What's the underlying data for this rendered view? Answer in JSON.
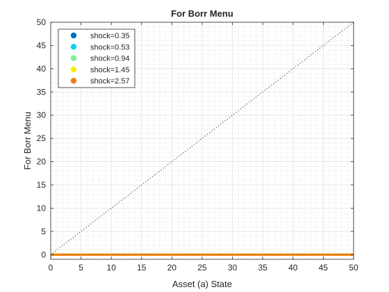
{
  "chart_data": {
    "type": "line",
    "title": "For Borr Menu",
    "xlabel": "Asset (a) State",
    "ylabel": "For Borr Menu",
    "xlim": [
      0,
      50
    ],
    "ylim": [
      -1,
      50
    ],
    "x_ticks": [
      0,
      5,
      10,
      15,
      20,
      25,
      30,
      35,
      40,
      45,
      50
    ],
    "y_ticks": [
      0,
      5,
      10,
      15,
      20,
      25,
      30,
      35,
      40,
      45,
      50
    ],
    "grid": true,
    "minor_grid": true,
    "legend_position": "top-left",
    "reference_line": {
      "style": "dotted",
      "color": "#000000",
      "x": [
        0,
        50
      ],
      "y": [
        0,
        50
      ]
    },
    "series": [
      {
        "name": "shock=0.35",
        "color": "#0072BD",
        "x": [
          0,
          50
        ],
        "y": [
          0,
          0
        ]
      },
      {
        "name": "shock=0.53",
        "color": "#00D8E8",
        "x": [
          0,
          50
        ],
        "y": [
          0,
          0
        ]
      },
      {
        "name": "shock=0.94",
        "color": "#80F090",
        "x": [
          0,
          50
        ],
        "y": [
          0,
          0
        ]
      },
      {
        "name": "shock=1.45",
        "color": "#F8F000",
        "x": [
          0,
          50
        ],
        "y": [
          0,
          0
        ]
      },
      {
        "name": "shock=2.57",
        "color": "#F57E0F",
        "x": [
          0,
          50
        ],
        "y": [
          0,
          0
        ]
      }
    ]
  }
}
